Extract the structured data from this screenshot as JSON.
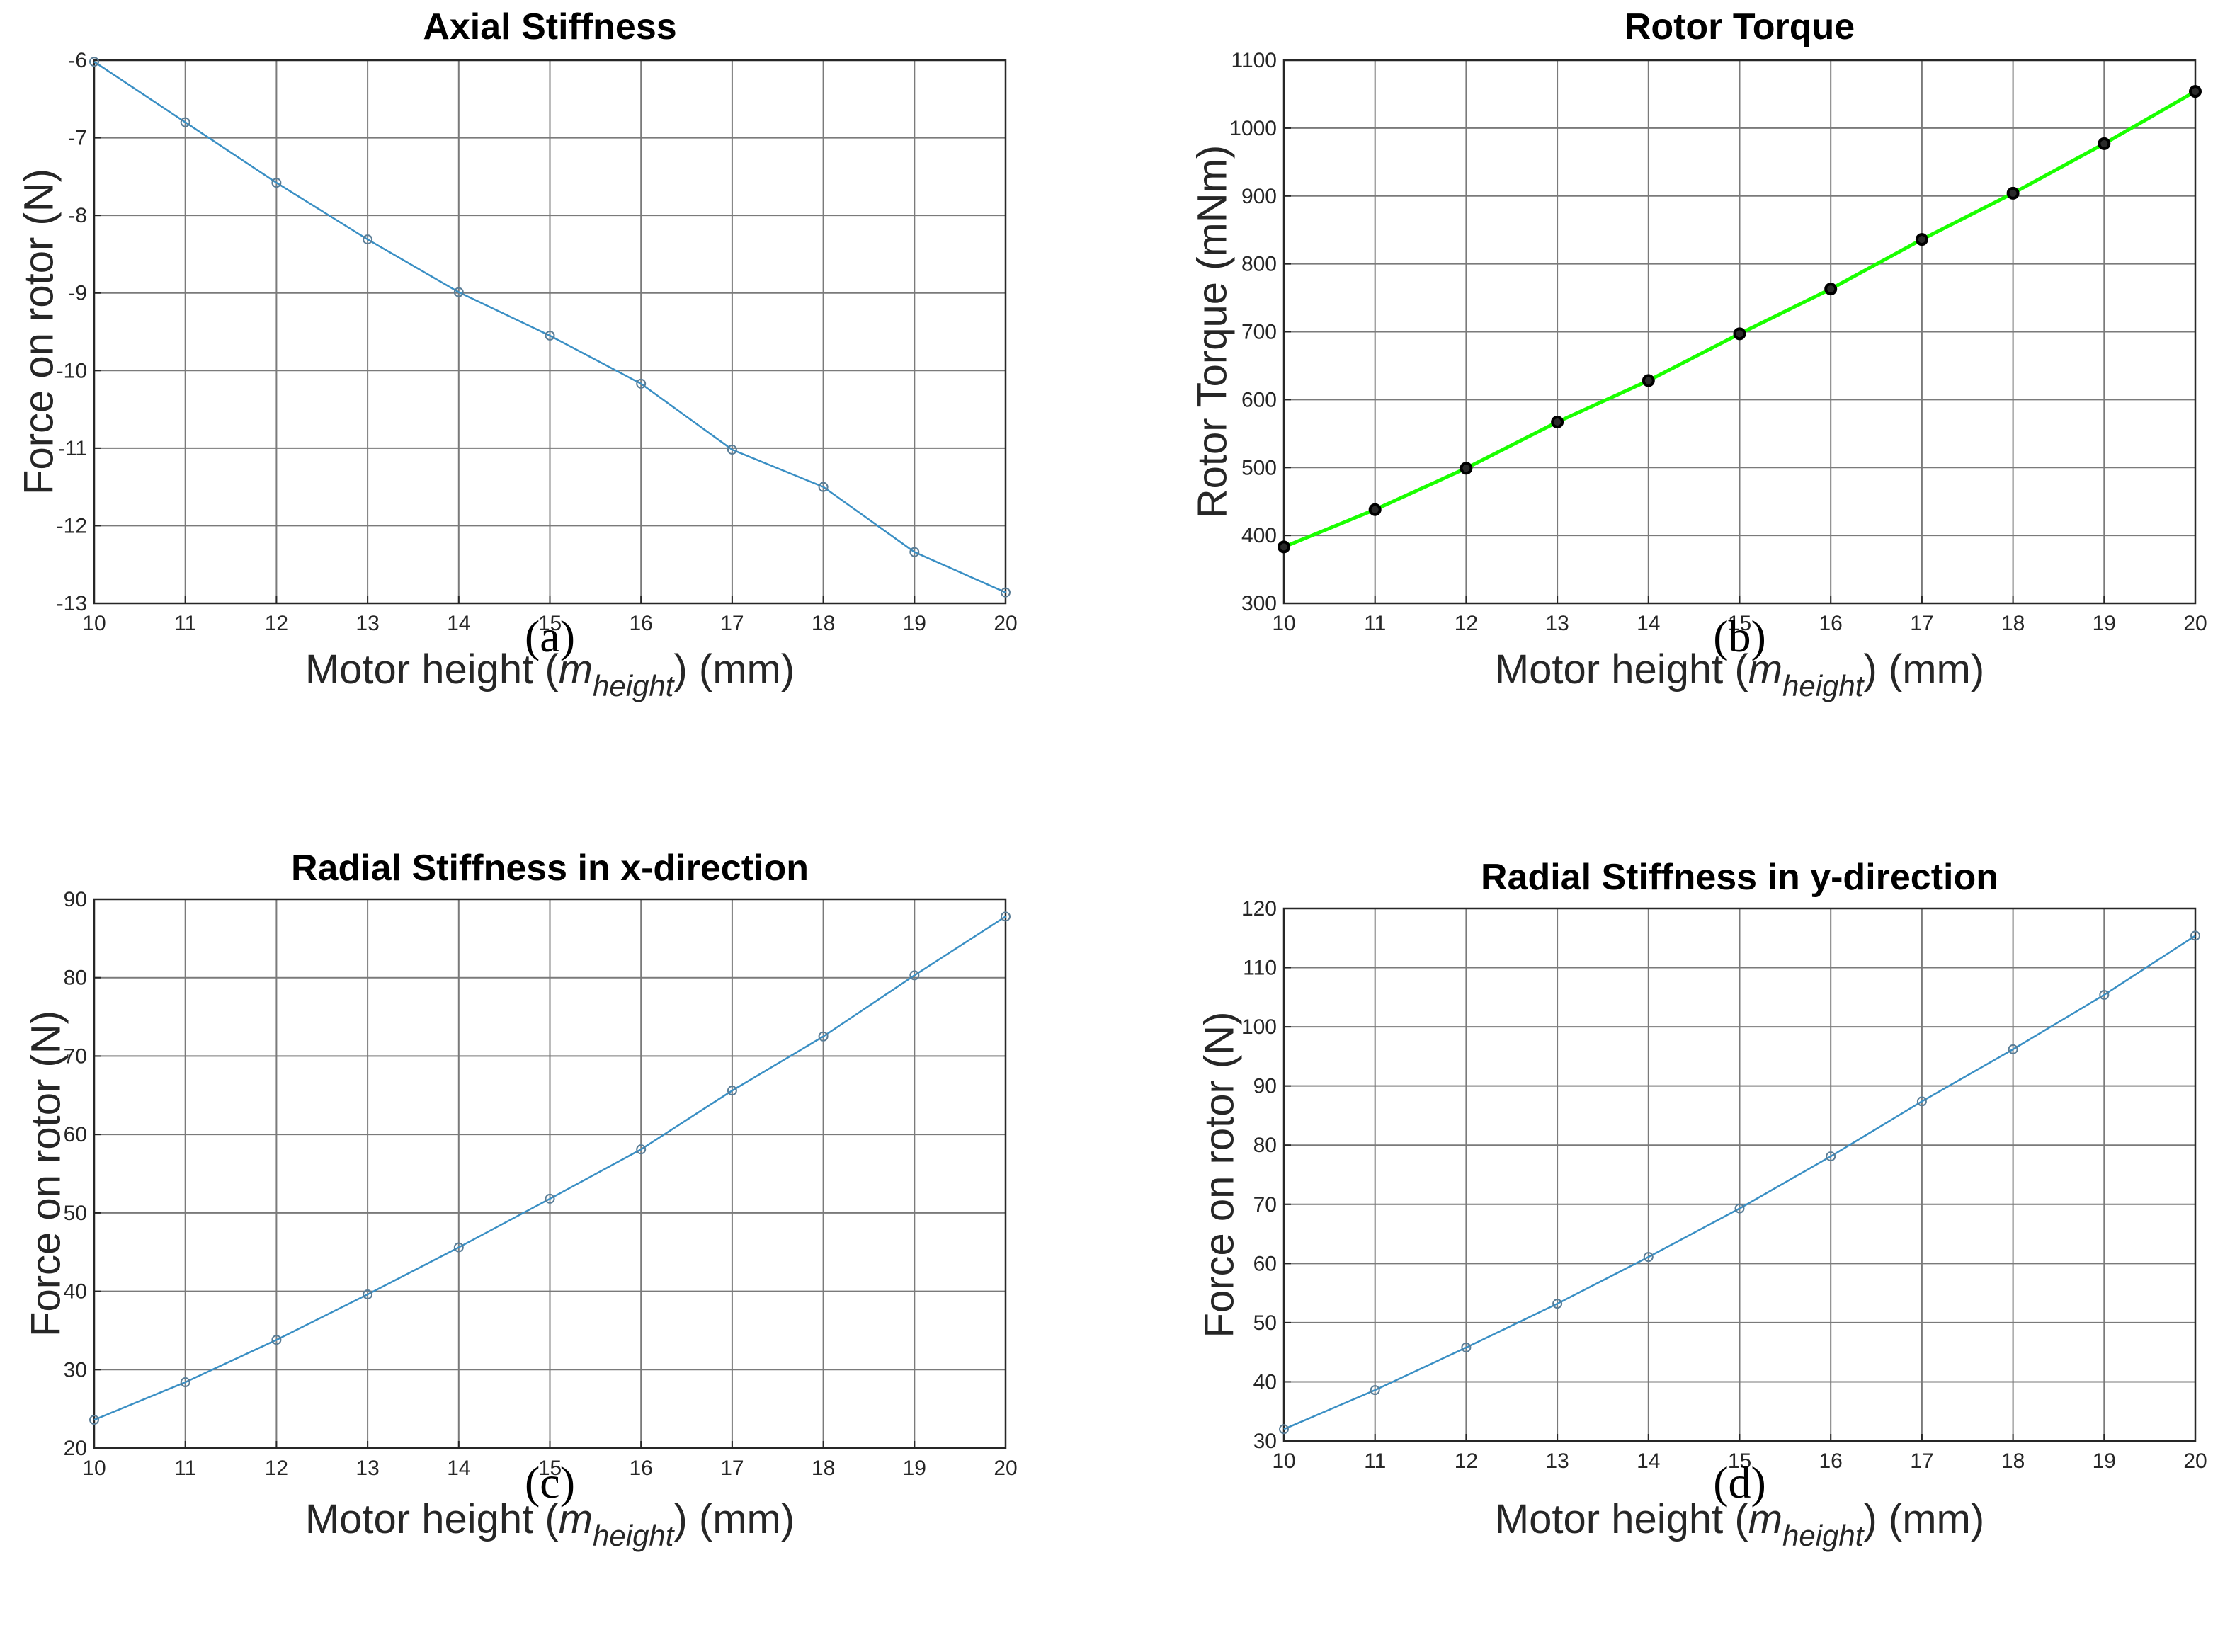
{
  "chart_data": [
    {
      "id": "a",
      "type": "line",
      "title": "Axial Stiffness",
      "xlabel_prefix": "Motor height (",
      "xlabel_symbol": "m",
      "xlabel_subscript": "height",
      "xlabel_suffix": ") (mm)",
      "ylabel": "Force on rotor (N)",
      "caption": "(a)",
      "xlim": [
        10,
        20
      ],
      "ylim": [
        -13,
        -6
      ],
      "xticks": [
        10,
        11,
        12,
        13,
        14,
        15,
        16,
        17,
        18,
        19,
        20
      ],
      "yticks": [
        -13,
        -12,
        -11,
        -10,
        -9,
        -8,
        -7,
        -6
      ],
      "grid": true,
      "line_color": "#3a8fc4",
      "marker_fill": "none",
      "marker_stroke": "#5a7d96",
      "x": [
        10,
        11,
        12,
        13,
        14,
        15,
        16,
        17,
        18,
        19,
        20
      ],
      "y": [
        -6.02,
        -6.8,
        -7.58,
        -8.31,
        -8.99,
        -9.55,
        -10.17,
        -11.02,
        -11.5,
        -12.34,
        -12.86
      ]
    },
    {
      "id": "b",
      "type": "line",
      "title": "Rotor Torque",
      "xlabel_prefix": "Motor height (",
      "xlabel_symbol": "m",
      "xlabel_subscript": "height",
      "xlabel_suffix": ") (mm)",
      "ylabel": "Rotor Torque (mNm)",
      "caption": "(b)",
      "xlim": [
        10,
        20
      ],
      "ylim": [
        300,
        1100
      ],
      "xticks": [
        10,
        11,
        12,
        13,
        14,
        15,
        16,
        17,
        18,
        19,
        20
      ],
      "yticks": [
        300,
        400,
        500,
        600,
        700,
        800,
        900,
        1000,
        1100
      ],
      "grid": true,
      "line_color": "#1aff00",
      "marker_fill": "#2a2a2a",
      "marker_stroke": "#000000",
      "x": [
        10,
        11,
        12,
        13,
        14,
        15,
        16,
        17,
        18,
        19,
        20
      ],
      "y": [
        383,
        438,
        499,
        567,
        628,
        697,
        763,
        836,
        904,
        977,
        1054
      ]
    },
    {
      "id": "c",
      "type": "line",
      "title": "Radial Stiffness in x-direction",
      "xlabel_prefix": "Motor height (",
      "xlabel_symbol": "m",
      "xlabel_subscript": "height",
      "xlabel_suffix": ") (mm)",
      "ylabel": "Force on rotor (N)",
      "caption": "(c)",
      "xlim": [
        10,
        20
      ],
      "ylim": [
        20,
        90
      ],
      "xticks": [
        10,
        11,
        12,
        13,
        14,
        15,
        16,
        17,
        18,
        19,
        20
      ],
      "yticks": [
        20,
        30,
        40,
        50,
        60,
        70,
        80,
        90
      ],
      "grid": true,
      "line_color": "#3a8fc4",
      "marker_fill": "none",
      "marker_stroke": "#5a7d96",
      "x": [
        10,
        11,
        12,
        13,
        14,
        15,
        16,
        17,
        18,
        19,
        20
      ],
      "y": [
        23.6,
        28.4,
        33.8,
        39.6,
        45.6,
        51.8,
        58.1,
        65.6,
        72.5,
        80.3,
        87.8
      ]
    },
    {
      "id": "d",
      "type": "line",
      "title": "Radial Stiffness in y-direction",
      "xlabel_prefix": "Motor height (",
      "xlabel_symbol": "m",
      "xlabel_subscript": "height",
      "xlabel_suffix": ") (mm)",
      "ylabel": "Force on rotor (N)",
      "caption": "(d)",
      "xlim": [
        10,
        20
      ],
      "ylim": [
        30,
        120
      ],
      "xticks": [
        10,
        11,
        12,
        13,
        14,
        15,
        16,
        17,
        18,
        19,
        20
      ],
      "yticks": [
        30,
        40,
        50,
        60,
        70,
        80,
        90,
        100,
        110,
        120
      ],
      "grid": true,
      "line_color": "#3a8fc4",
      "marker_fill": "none",
      "marker_stroke": "#5a7d96",
      "x": [
        10,
        11,
        12,
        13,
        14,
        15,
        16,
        17,
        18,
        19,
        20
      ],
      "y": [
        32,
        38.6,
        45.8,
        53.2,
        61.1,
        69.3,
        78.1,
        87.4,
        96.2,
        105.4,
        115.4
      ]
    }
  ]
}
